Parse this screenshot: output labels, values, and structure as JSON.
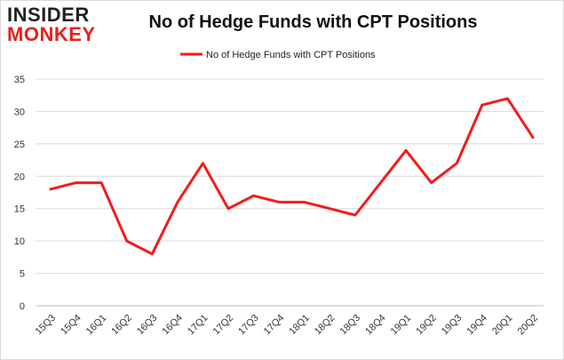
{
  "brand": {
    "logo_line1": "INSIDER",
    "logo_line2": "MONKEY",
    "accent": "#e8201d"
  },
  "chart_data": {
    "type": "line",
    "title": "No of Hedge Funds with CPT Positions",
    "categories": [
      "15Q3",
      "15Q4",
      "16Q1",
      "16Q2",
      "16Q3",
      "16Q4",
      "17Q1",
      "17Q2",
      "17Q3",
      "17Q4",
      "18Q1",
      "18Q2",
      "18Q3",
      "18Q4",
      "19Q1",
      "19Q2",
      "19Q3",
      "19Q4",
      "20Q1",
      "20Q2"
    ],
    "series": [
      {
        "name": "No of Hedge Funds with CPT Positions",
        "color": "#f51b1b",
        "values": [
          18,
          19,
          19,
          10,
          8,
          16,
          22,
          15,
          17,
          16,
          16,
          15,
          14,
          19,
          24,
          19,
          22,
          31,
          32,
          26
        ]
      }
    ],
    "ylim": [
      0,
      35
    ],
    "yticks": [
      0,
      5,
      10,
      15,
      20,
      25,
      30,
      35
    ],
    "xlabel": "",
    "ylabel": "",
    "grid": true,
    "legend": "top-center"
  }
}
